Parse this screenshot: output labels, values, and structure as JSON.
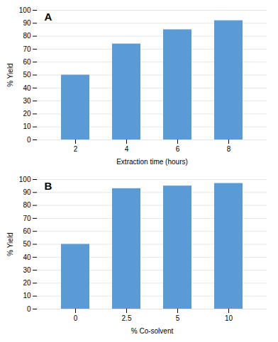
{
  "chart_data": [
    {
      "type": "bar",
      "annotations": [
        "A"
      ],
      "categories": [
        "2",
        "4",
        "6",
        "8"
      ],
      "values": [
        50,
        74,
        85,
        92
      ],
      "color": "#5B9BD5",
      "xlabel": "Extraction time (hours)",
      "ylabel": "% Yield",
      "ylim": [
        0,
        100
      ],
      "yticks": [
        0,
        10,
        20,
        30,
        40,
        50,
        60,
        70,
        80,
        90,
        100
      ],
      "grid": true
    },
    {
      "type": "bar",
      "annotations": [
        "B"
      ],
      "categories": [
        "0",
        "2.5",
        "5",
        "10"
      ],
      "values": [
        50,
        93,
        95,
        97
      ],
      "color": "#5B9BD5",
      "xlabel": "% Co-solvent",
      "ylabel": "% Yield",
      "ylim": [
        0,
        100
      ],
      "yticks": [
        0,
        10,
        20,
        30,
        40,
        50,
        60,
        70,
        80,
        90,
        100
      ],
      "grid": true
    }
  ]
}
